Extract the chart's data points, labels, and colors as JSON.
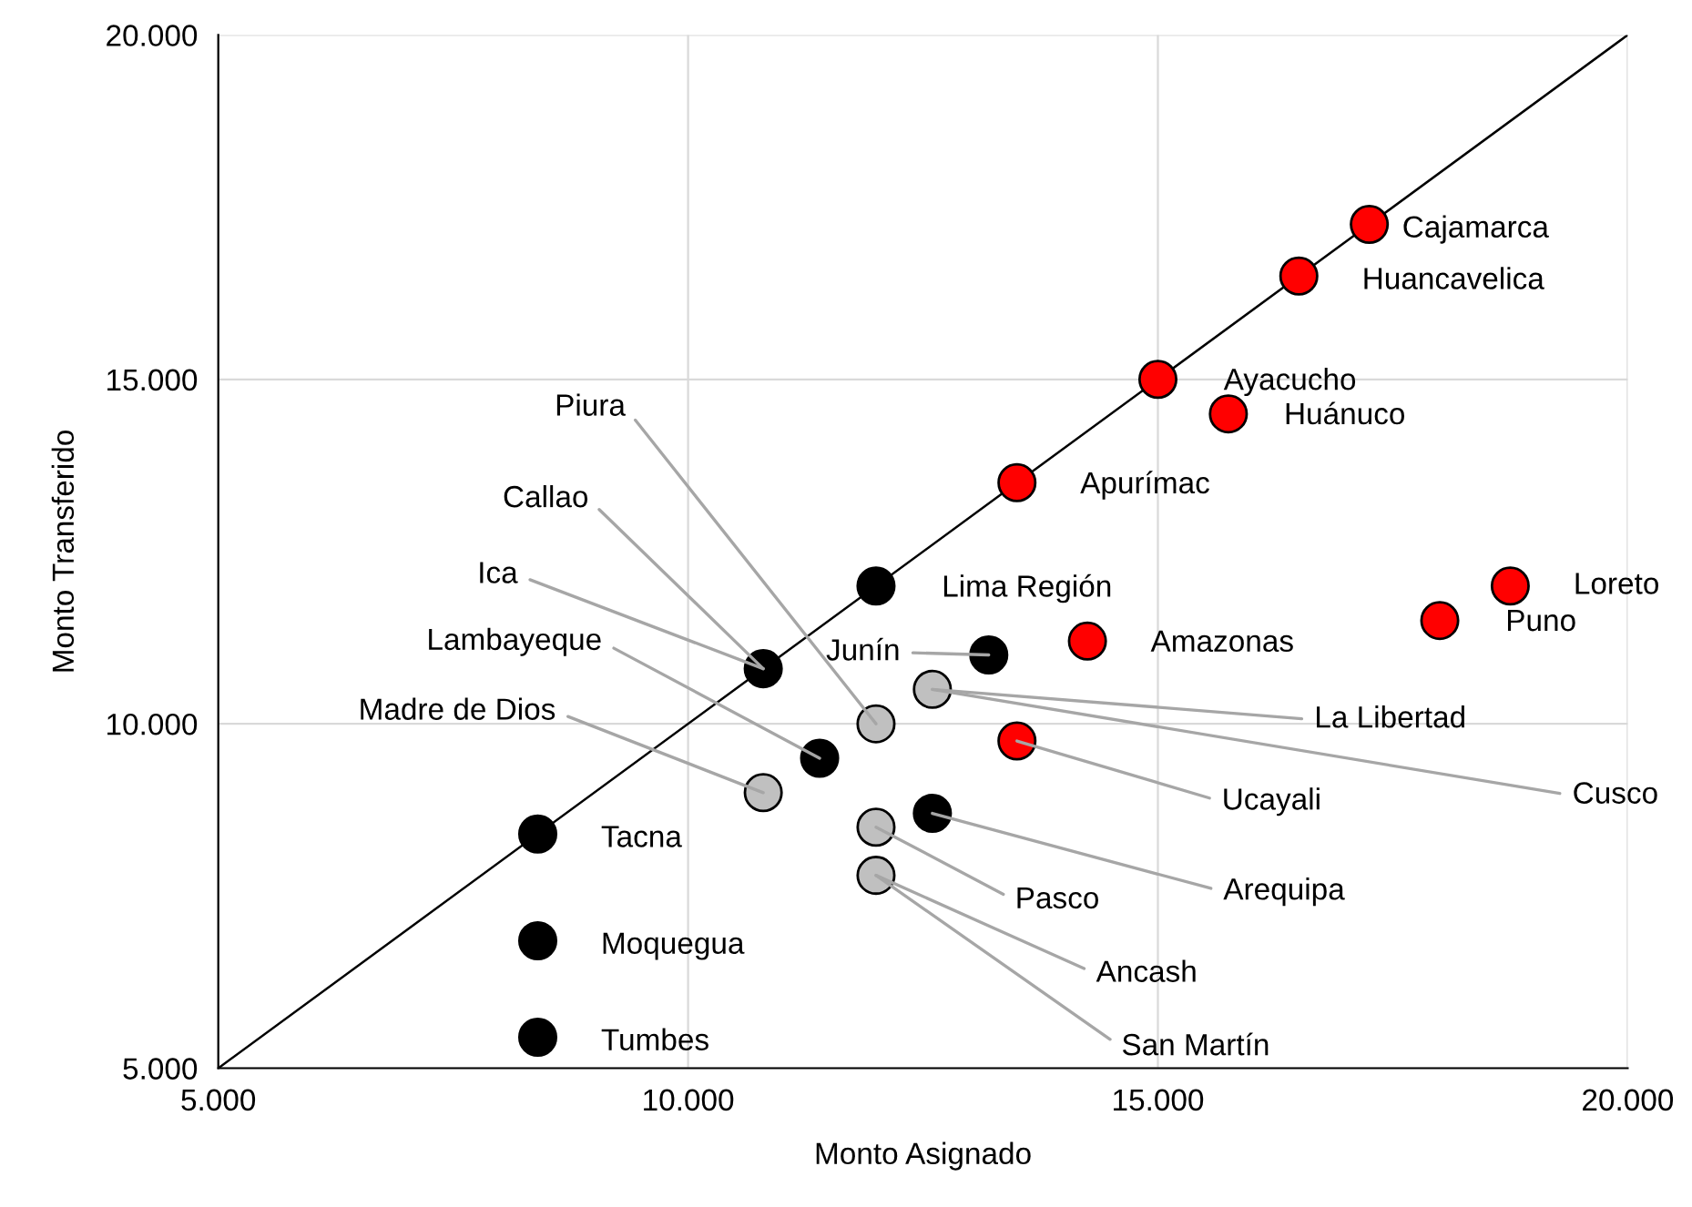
{
  "chart_data": {
    "type": "scatter",
    "xlabel": "Monto Asignado",
    "ylabel": "Monto Transferido",
    "xlim": [
      5000,
      20000
    ],
    "ylim": [
      5000,
      20000
    ],
    "xticks": [
      {
        "value": 5000,
        "label": "5.000"
      },
      {
        "value": 10000,
        "label": "10.000"
      },
      {
        "value": 15000,
        "label": "15.000"
      },
      {
        "value": 20000,
        "label": "20.000"
      }
    ],
    "yticks": [
      {
        "value": 5000,
        "label": "5.000"
      },
      {
        "value": 10000,
        "label": "10.000"
      },
      {
        "value": 15000,
        "label": "15.000"
      },
      {
        "value": 20000,
        "label": "20.000"
      }
    ],
    "grid": true,
    "marker": "circle",
    "series": [
      {
        "type": "line",
        "color": "#000000",
        "x": [
          5000,
          20000
        ],
        "values": [
          5000,
          20000
        ],
        "marker": "none"
      },
      {
        "color": "#ff0000",
        "x": [
          17250,
          16500,
          15000,
          15750,
          13500,
          18750,
          18000,
          14250,
          13500
        ],
        "values": [
          17250,
          16500,
          15000,
          14500,
          13500,
          12000,
          11500,
          11200,
          9750
        ]
      },
      {
        "color": "#000000",
        "x": [
          12000,
          13200,
          10800,
          11400,
          12600,
          8400,
          8400,
          8400
        ],
        "values": [
          12000,
          11000,
          10800,
          9500,
          8700,
          8400,
          6850,
          5450
        ]
      },
      {
        "color": "#c0c0c0",
        "x": [
          12600,
          12000,
          10800,
          12000,
          12000
        ],
        "values": [
          10500,
          10000,
          9000,
          8500,
          7800
        ]
      }
    ],
    "annotations": [
      {
        "text": "Cajamarca",
        "x": 17250,
        "y": 17250
      },
      {
        "text": "Huancavelica",
        "x": 16500,
        "y": 16500
      },
      {
        "text": "Ayacucho",
        "x": 15000,
        "y": 15000
      },
      {
        "text": "Huánuco",
        "x": 15750,
        "y": 14500
      },
      {
        "text": "Apurímac",
        "x": 13500,
        "y": 13500
      },
      {
        "text": "Lima Región",
        "x": 12000,
        "y": 12000
      },
      {
        "text": "Loreto",
        "x": 18750,
        "y": 12000
      },
      {
        "text": "Puno",
        "x": 18000,
        "y": 11500
      },
      {
        "text": "Amazonas",
        "x": 14250,
        "y": 11200
      },
      {
        "text": "Tacna",
        "x": 8400,
        "y": 8400
      },
      {
        "text": "Moquegua",
        "x": 8400,
        "y": 6850
      },
      {
        "text": "Tumbes",
        "x": 8400,
        "y": 5450
      },
      {
        "text": "Junín",
        "x": 13200,
        "y": 11000
      },
      {
        "text": "Piura",
        "x": 12000,
        "y": 10000
      },
      {
        "text": "Callao",
        "x": 10800,
        "y": 10800
      },
      {
        "text": "Ica",
        "x": 10800,
        "y": 10800
      },
      {
        "text": "Lambayeque",
        "x": 11400,
        "y": 9500
      },
      {
        "text": "Madre de Dios",
        "x": 10800,
        "y": 9000
      },
      {
        "text": "La Libertad",
        "x": 12600,
        "y": 10500
      },
      {
        "text": "Cusco",
        "x": 12600,
        "y": 10500
      },
      {
        "text": "Ucayali",
        "x": 13500,
        "y": 9750
      },
      {
        "text": "Arequipa",
        "x": 12600,
        "y": 8700
      },
      {
        "text": "Pasco",
        "x": 12000,
        "y": 8500
      },
      {
        "text": "Ancash",
        "x": 12000,
        "y": 7800
      },
      {
        "text": "San Martín",
        "x": 12000,
        "y": 7800
      }
    ]
  }
}
